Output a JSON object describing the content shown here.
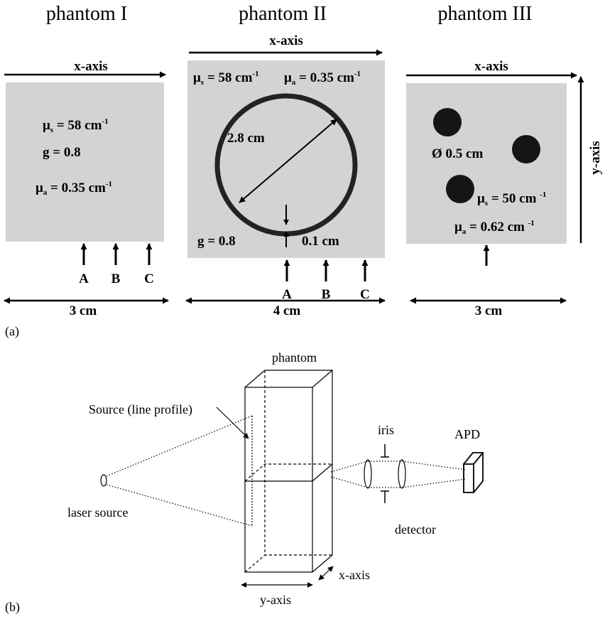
{
  "part_a": {
    "panel_label": "(a)",
    "phantom1": {
      "title": "phantom I",
      "x_axis": "x-axis",
      "mu_s": {
        "sym": "μ",
        "sub": "s",
        "val": " = 58 cm",
        "sup": "-1"
      },
      "g": "g =  0.8",
      "mu_a": {
        "sym": "μ",
        "sub": "a",
        "val": " = 0.35 cm",
        "sup": "-1"
      },
      "points": [
        "A",
        "B",
        "C"
      ],
      "width": "3 cm"
    },
    "phantom2": {
      "title": "phantom II",
      "x_axis": "x-axis",
      "mu_s": {
        "sym": "μ",
        "sub": "s",
        "val": " = 58 cm",
        "sup": "-1"
      },
      "mu_a": {
        "sym": "μ",
        "sub": "a",
        "val": " = 0.35 cm",
        "sup": "-1"
      },
      "diameter": "2.8 cm",
      "g": "g =  0.8",
      "thickness": "0.1 cm",
      "points": [
        "A",
        "B",
        "C"
      ],
      "width": "4 cm"
    },
    "phantom3": {
      "title": "phantom III",
      "x_axis": "x-axis",
      "y_axis": "y-axis",
      "diameter": "Ø 0.5 cm",
      "mu_s": {
        "sym": "μ",
        "sub": "s",
        "val": " = 50 cm ",
        "sup": "-1"
      },
      "mu_a": {
        "sym": "μ",
        "sub": "a",
        "val": " = 0.62 cm ",
        "sup": "-1"
      },
      "width": "3 cm"
    }
  },
  "part_b": {
    "panel_label": "(b)",
    "phantom": "phantom",
    "source_line": "Source (line profile)",
    "laser_source": "laser source",
    "iris": "iris",
    "apd": "APD",
    "detector": "detector",
    "x_axis": "x-axis",
    "y_axis": "y-axis"
  }
}
